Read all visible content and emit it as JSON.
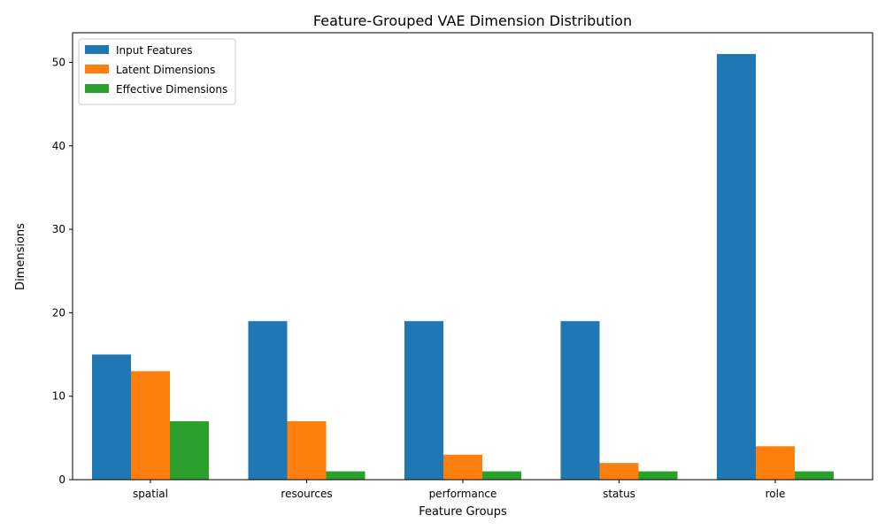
{
  "chart_data": {
    "type": "bar",
    "title": "Feature-Grouped VAE Dimension Distribution",
    "xlabel": "Feature Groups",
    "ylabel": "Dimensions",
    "categories": [
      "spatial",
      "resources",
      "performance",
      "status",
      "role"
    ],
    "series": [
      {
        "name": "Input Features",
        "color": "#1f77b4",
        "values": [
          15,
          19,
          19,
          19,
          51
        ]
      },
      {
        "name": "Latent Dimensions",
        "color": "#ff7f0e",
        "values": [
          13,
          7,
          3,
          2,
          4
        ]
      },
      {
        "name": "Effective Dimensions",
        "color": "#2ca02c",
        "values": [
          7,
          1,
          1,
          1,
          1
        ]
      }
    ],
    "ylim": [
      0,
      53.55
    ],
    "yticks": [
      0,
      10,
      20,
      30,
      40,
      50
    ],
    "grid": false,
    "legend_position": "top-left"
  }
}
